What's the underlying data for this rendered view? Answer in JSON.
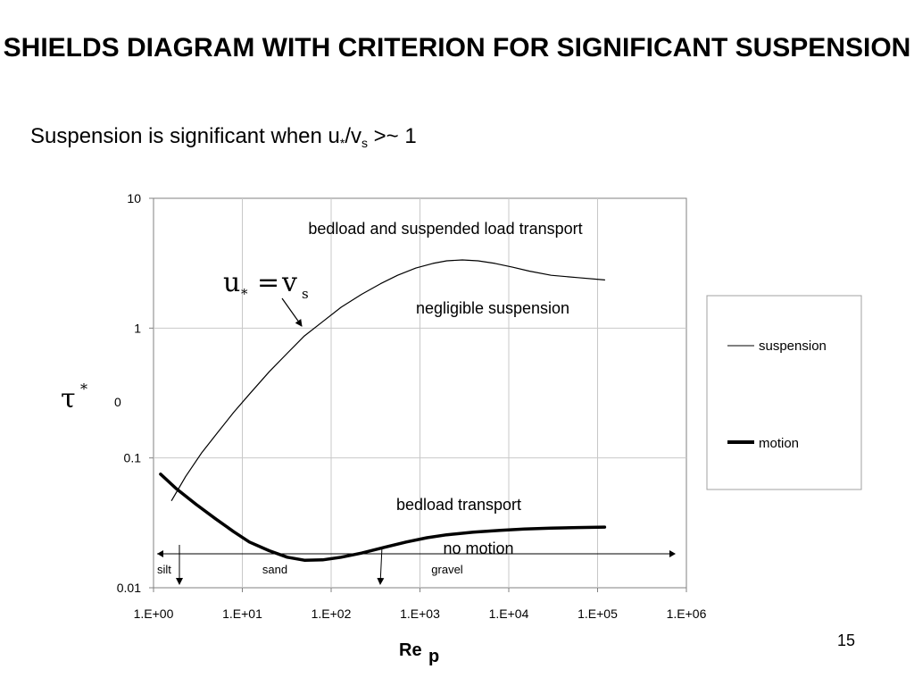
{
  "slide": {
    "title": "SHIELDS DIAGRAM WITH CRITERION FOR SIGNIFICANT SUSPENSION",
    "subtitle_prefix": "Suspension is significant when u",
    "subtitle_sub1": "*",
    "subtitle_mid": "/v",
    "subtitle_sub2": "s",
    "subtitle_suffix": " >~ 1",
    "page_number": "15"
  },
  "chart_data": {
    "type": "line",
    "xscale": "log",
    "yscale": "log",
    "xlim": [
      1,
      1000000
    ],
    "ylim": [
      0.01,
      10
    ],
    "xticks": [
      "1.E+00",
      "1.E+01",
      "1.E+02",
      "1.E+03",
      "1.E+04",
      "1.E+05",
      "1.E+06"
    ],
    "yticks": [
      "10",
      "1",
      "0.1",
      "0.01"
    ],
    "ylabel_extra_tick": "0",
    "ylabel_main": "τ",
    "ylabel_sup": "*",
    "xlabel_main": "Re",
    "xlabel_sub": "p",
    "grid": true,
    "legend_position": "right",
    "series": [
      {
        "name": "suspension",
        "style": "thin",
        "x": [
          1.6,
          2.3,
          3.5,
          5.2,
          8,
          12,
          20,
          32,
          50,
          80,
          130,
          220,
          360,
          560,
          900,
          1400,
          2000,
          3000,
          4500,
          7000,
          11000,
          17000,
          30000,
          60000,
          120000
        ],
        "y": [
          0.047,
          0.072,
          0.11,
          0.155,
          0.225,
          0.31,
          0.46,
          0.64,
          0.87,
          1.12,
          1.45,
          1.82,
          2.2,
          2.55,
          2.9,
          3.15,
          3.3,
          3.35,
          3.3,
          3.15,
          2.95,
          2.75,
          2.55,
          2.45,
          2.35
        ]
      },
      {
        "name": "motion",
        "style": "thick",
        "x": [
          1.2,
          1.8,
          3,
          5,
          8,
          12,
          20,
          32,
          50,
          80,
          130,
          220,
          400,
          700,
          1200,
          2000,
          4000,
          8000,
          15000,
          30000,
          60000,
          120000
        ],
        "y": [
          0.075,
          0.058,
          0.044,
          0.034,
          0.027,
          0.0225,
          0.0193,
          0.0172,
          0.0163,
          0.0164,
          0.0172,
          0.0185,
          0.0205,
          0.0225,
          0.0243,
          0.0256,
          0.0268,
          0.0277,
          0.0283,
          0.0288,
          0.0291,
          0.0293
        ]
      }
    ],
    "annotations": {
      "region_upper": "bedload and suspended load transport",
      "region_middle": "negligible suspension",
      "region_lower": "bedload transport",
      "region_none": "no motion",
      "criterion_u": "u",
      "criterion_u_sub": "*",
      "criterion_eq": "=",
      "criterion_v": "v",
      "criterion_v_sub": "s",
      "grain_silt": "silt",
      "grain_sand": "sand",
      "grain_gravel": "gravel"
    },
    "grain_size_boundaries_x": [
      1.2,
      400
    ]
  }
}
